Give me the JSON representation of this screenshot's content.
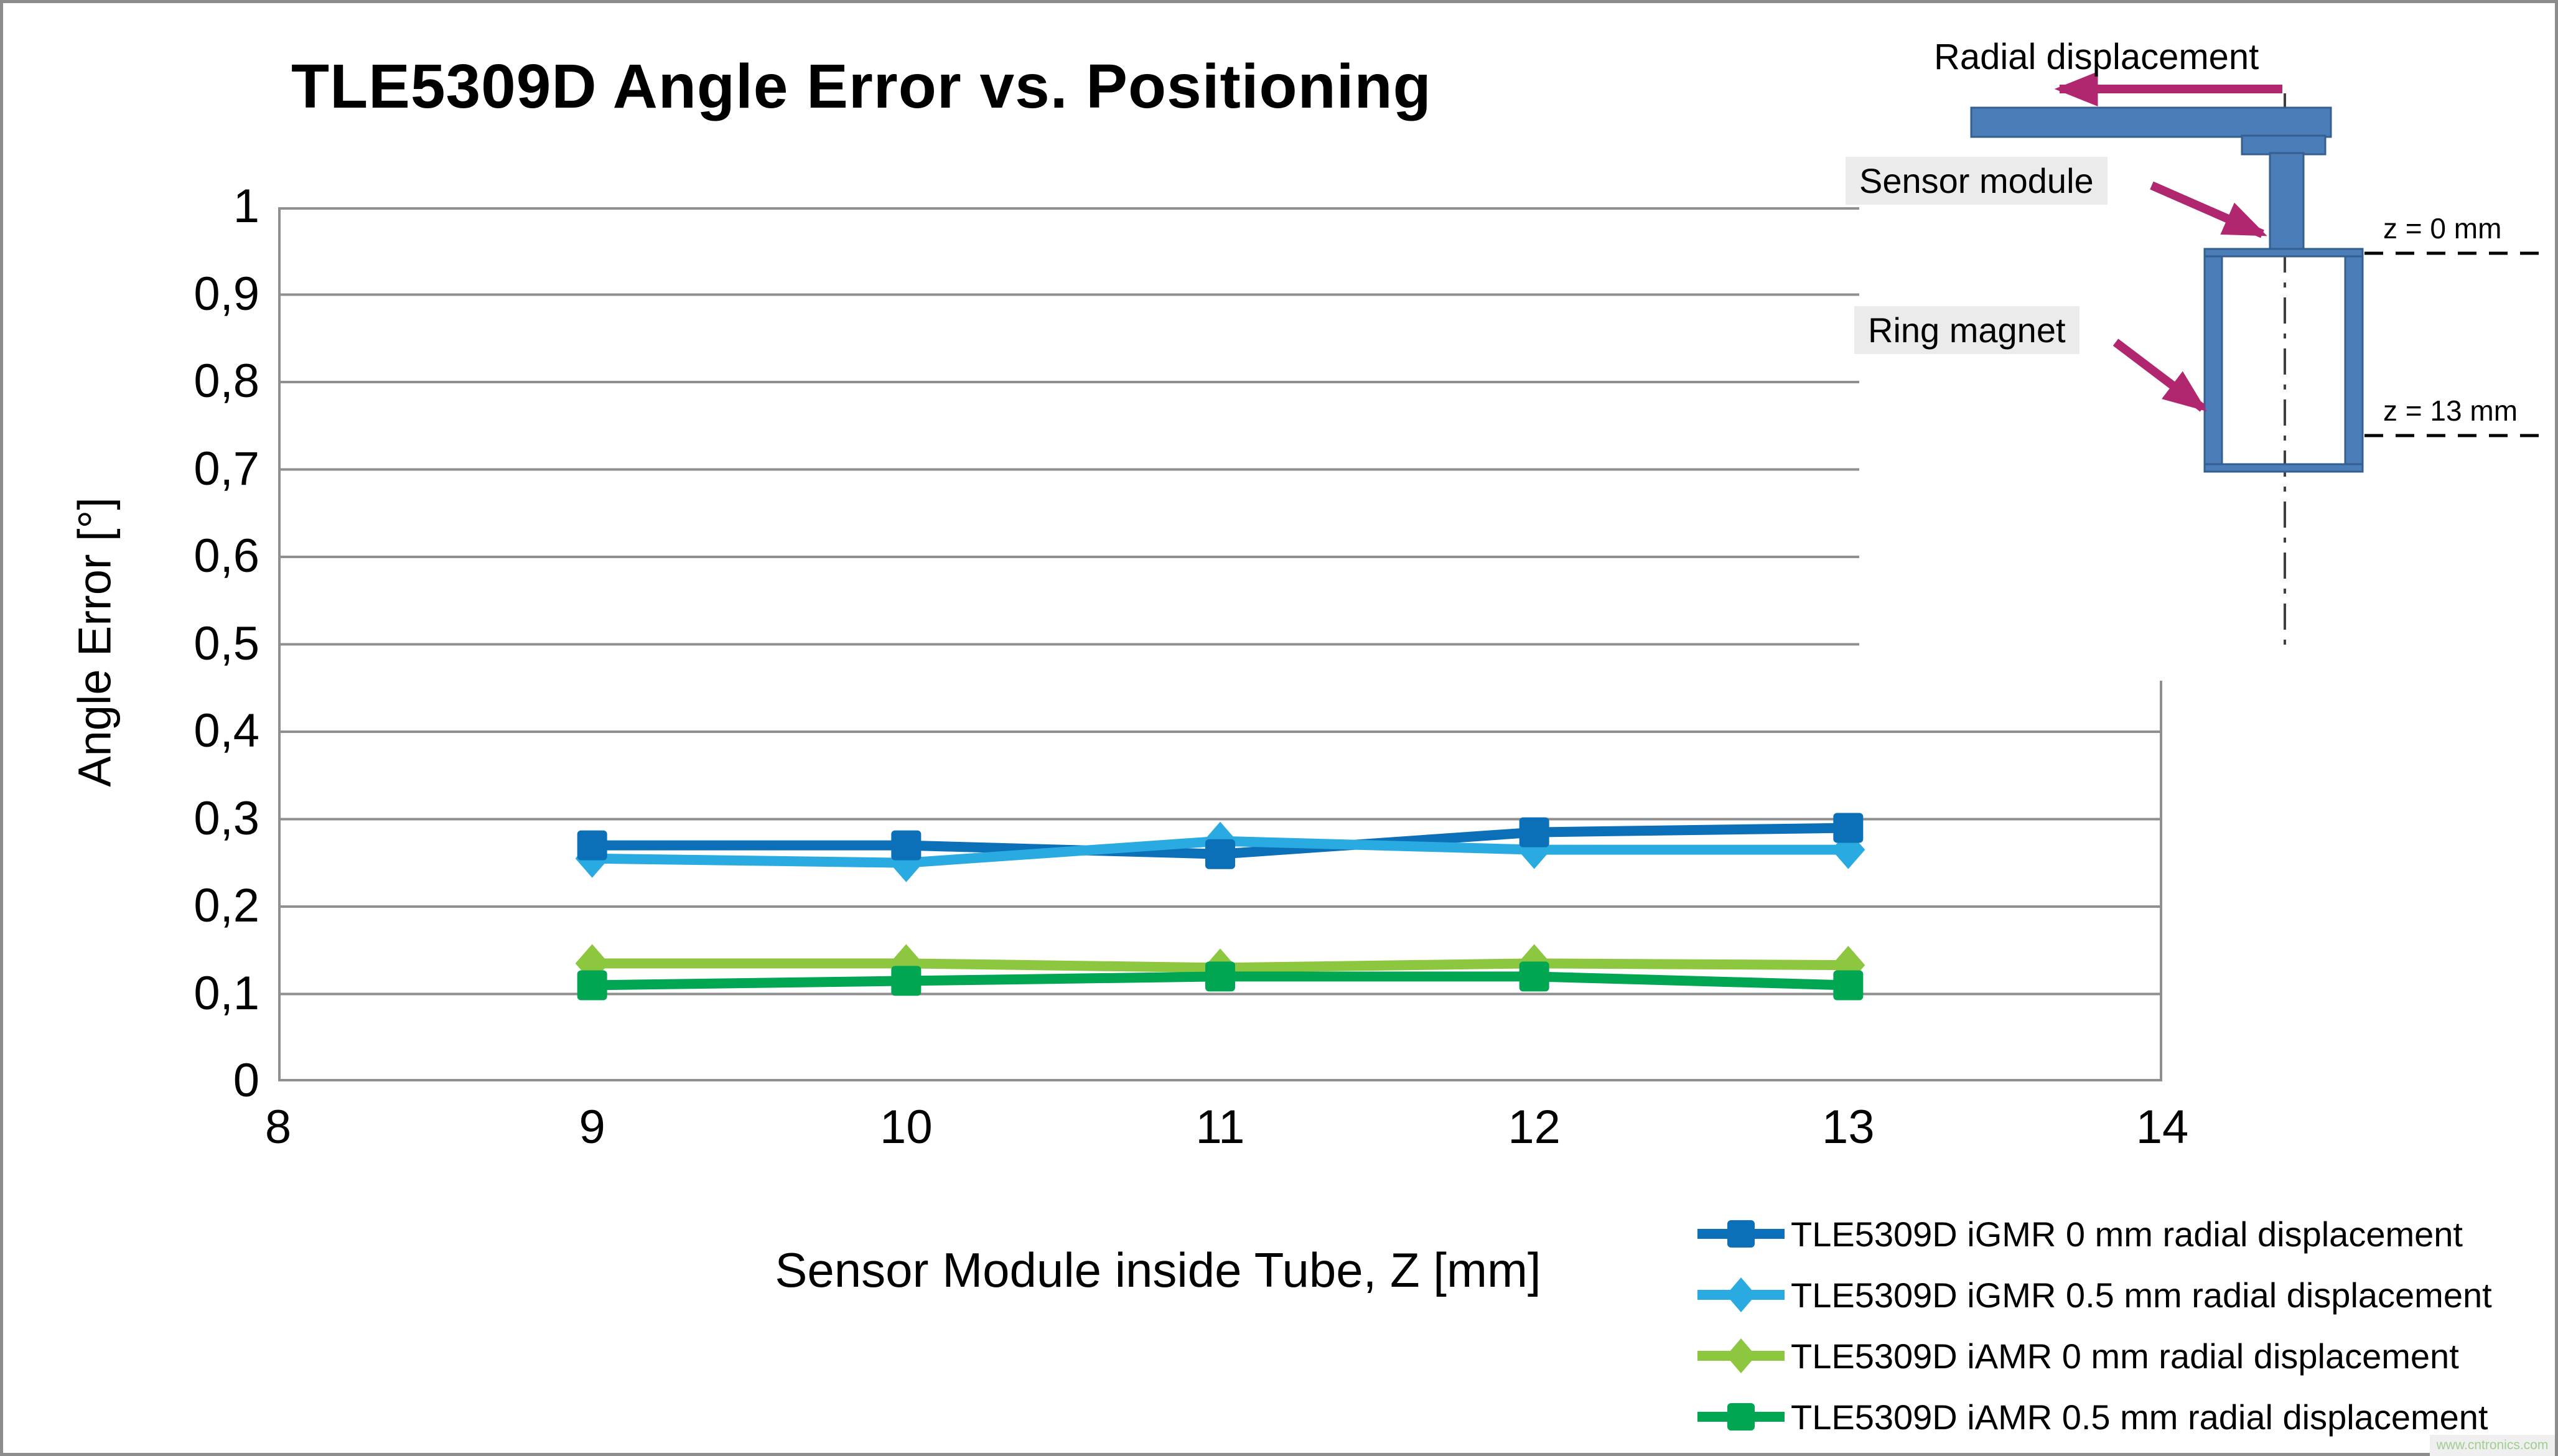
{
  "title": "TLE5309D Angle Error vs. Positioning",
  "watermark": "www.cntronics.com",
  "chart_data": {
    "type": "line",
    "title": "TLE5309D Angle Error vs. Positioning",
    "xlabel": "Sensor Module inside Tube, Z [mm]",
    "ylabel": "Angle Error [°]",
    "xlim": [
      8,
      14
    ],
    "ylim": [
      0,
      1
    ],
    "x_tick_labels": [
      "8",
      "9",
      "10",
      "11",
      "12",
      "13",
      "14"
    ],
    "y_tick_labels": [
      "0",
      "0,1",
      "0,2",
      "0,3",
      "0,4",
      "0,5",
      "0,6",
      "0,7",
      "0,8",
      "0,9",
      "1"
    ],
    "grid": "horizontal-only",
    "gridline_color": "#8f8f8f",
    "legend_position": "bottom-right",
    "x": [
      9,
      10,
      11,
      12,
      13
    ],
    "series": [
      {
        "name": "TLE5309D iGMR 0 mm radial displacement",
        "color": "#0b70b8",
        "marker": "square",
        "values": [
          0.27,
          0.27,
          0.26,
          0.285,
          0.29
        ]
      },
      {
        "name": "TLE5309D iGMR 0.5 mm radial displacement",
        "color": "#29abe2",
        "marker": "diamond",
        "values": [
          0.255,
          0.25,
          0.275,
          0.265,
          0.265
        ]
      },
      {
        "name": "TLE5309D iAMR 0 mm radial displacement",
        "color": "#8dc63f",
        "marker": "diamond",
        "values": [
          0.135,
          0.135,
          0.13,
          0.135,
          0.133
        ]
      },
      {
        "name": "TLE5309D iAMR 0.5 mm radial displacement",
        "color": "#00a651",
        "marker": "square",
        "values": [
          0.11,
          0.115,
          0.12,
          0.12,
          0.11
        ]
      }
    ]
  },
  "diagram": {
    "radial_label": "Radial displacement",
    "sensor_label": "Sensor module",
    "magnet_label": "Ring magnet",
    "z0_label": "z = 0 mm",
    "z13_label": "z = 13 mm",
    "arrow_color": "#b0276f",
    "part_fill": "#4b7db8",
    "part_border": "#365f91"
  }
}
